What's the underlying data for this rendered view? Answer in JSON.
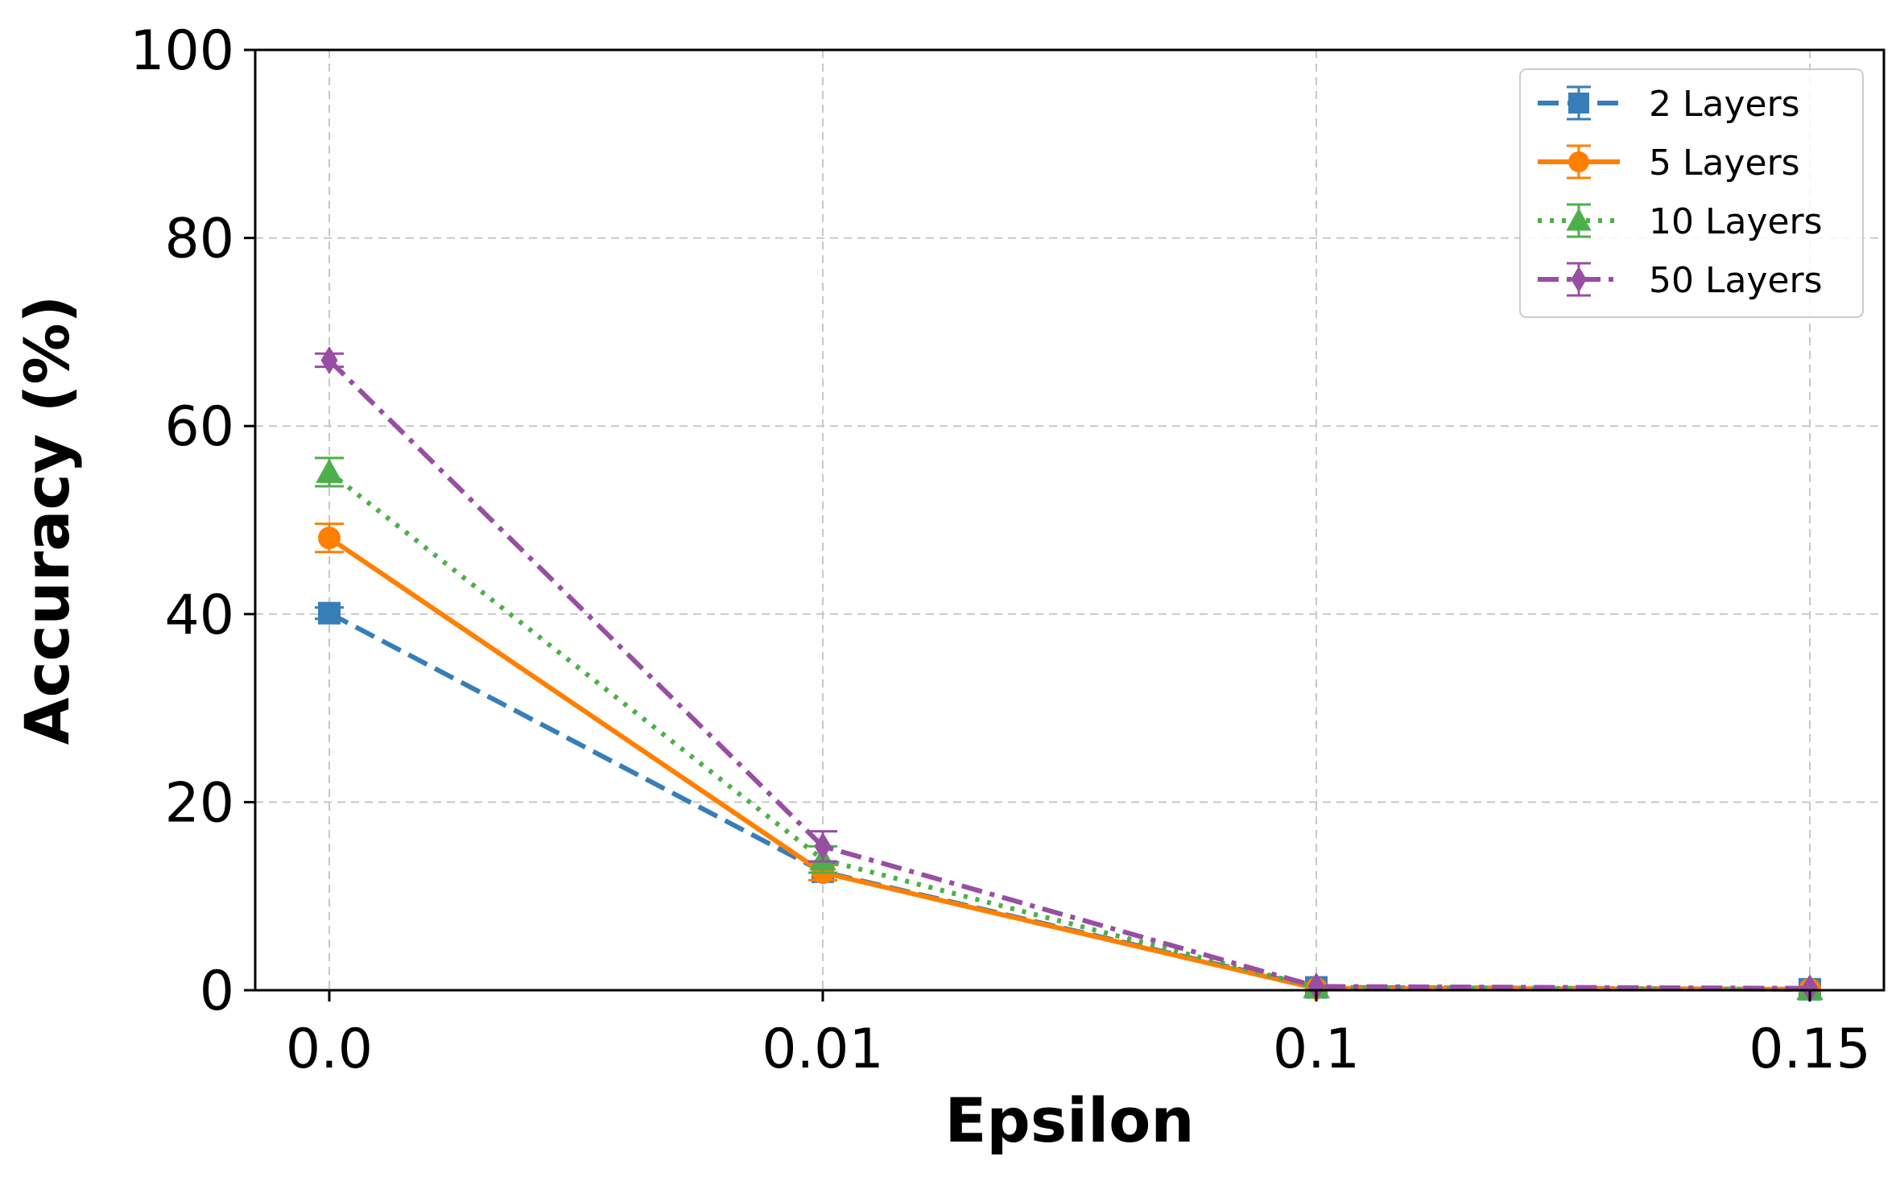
{
  "chart_data": {
    "type": "line",
    "categories": [
      "0.0",
      "0.01",
      "0.1",
      "0.15"
    ],
    "xlabel": "Epsilon",
    "ylabel": "Accuracy (%)",
    "ylim": [
      0,
      100
    ],
    "yticks": [
      "0",
      "20",
      "40",
      "60",
      "80",
      "100"
    ],
    "grid": true,
    "legend_position": "top-right",
    "error_bars": true,
    "series": [
      {
        "name": "2 Layers",
        "color": "#377eb8",
        "marker": "square",
        "line_style": "dashed",
        "values": [
          40.1,
          12.6,
          0.3,
          0.1
        ],
        "errors": [
          0.6,
          0.9,
          0.1,
          0.05
        ]
      },
      {
        "name": "5 Layers",
        "color": "#ff7f00",
        "marker": "circle",
        "line_style": "solid",
        "values": [
          48.1,
          12.5,
          0.2,
          0.1
        ],
        "errors": [
          1.5,
          0.8,
          0.1,
          0.05
        ]
      },
      {
        "name": "10 Layers",
        "color": "#4daf4a",
        "marker": "triangle-up",
        "line_style": "dotted",
        "values": [
          55.1,
          13.9,
          0.3,
          0.1
        ],
        "errors": [
          1.5,
          1.4,
          0.1,
          0.05
        ]
      },
      {
        "name": "50 Layers",
        "color": "#984ea3",
        "marker": "thin-diamond",
        "line_style": "dash-dot",
        "values": [
          67.0,
          15.3,
          0.4,
          0.2
        ],
        "errors": [
          0.7,
          1.6,
          0.1,
          0.05
        ]
      }
    ]
  }
}
